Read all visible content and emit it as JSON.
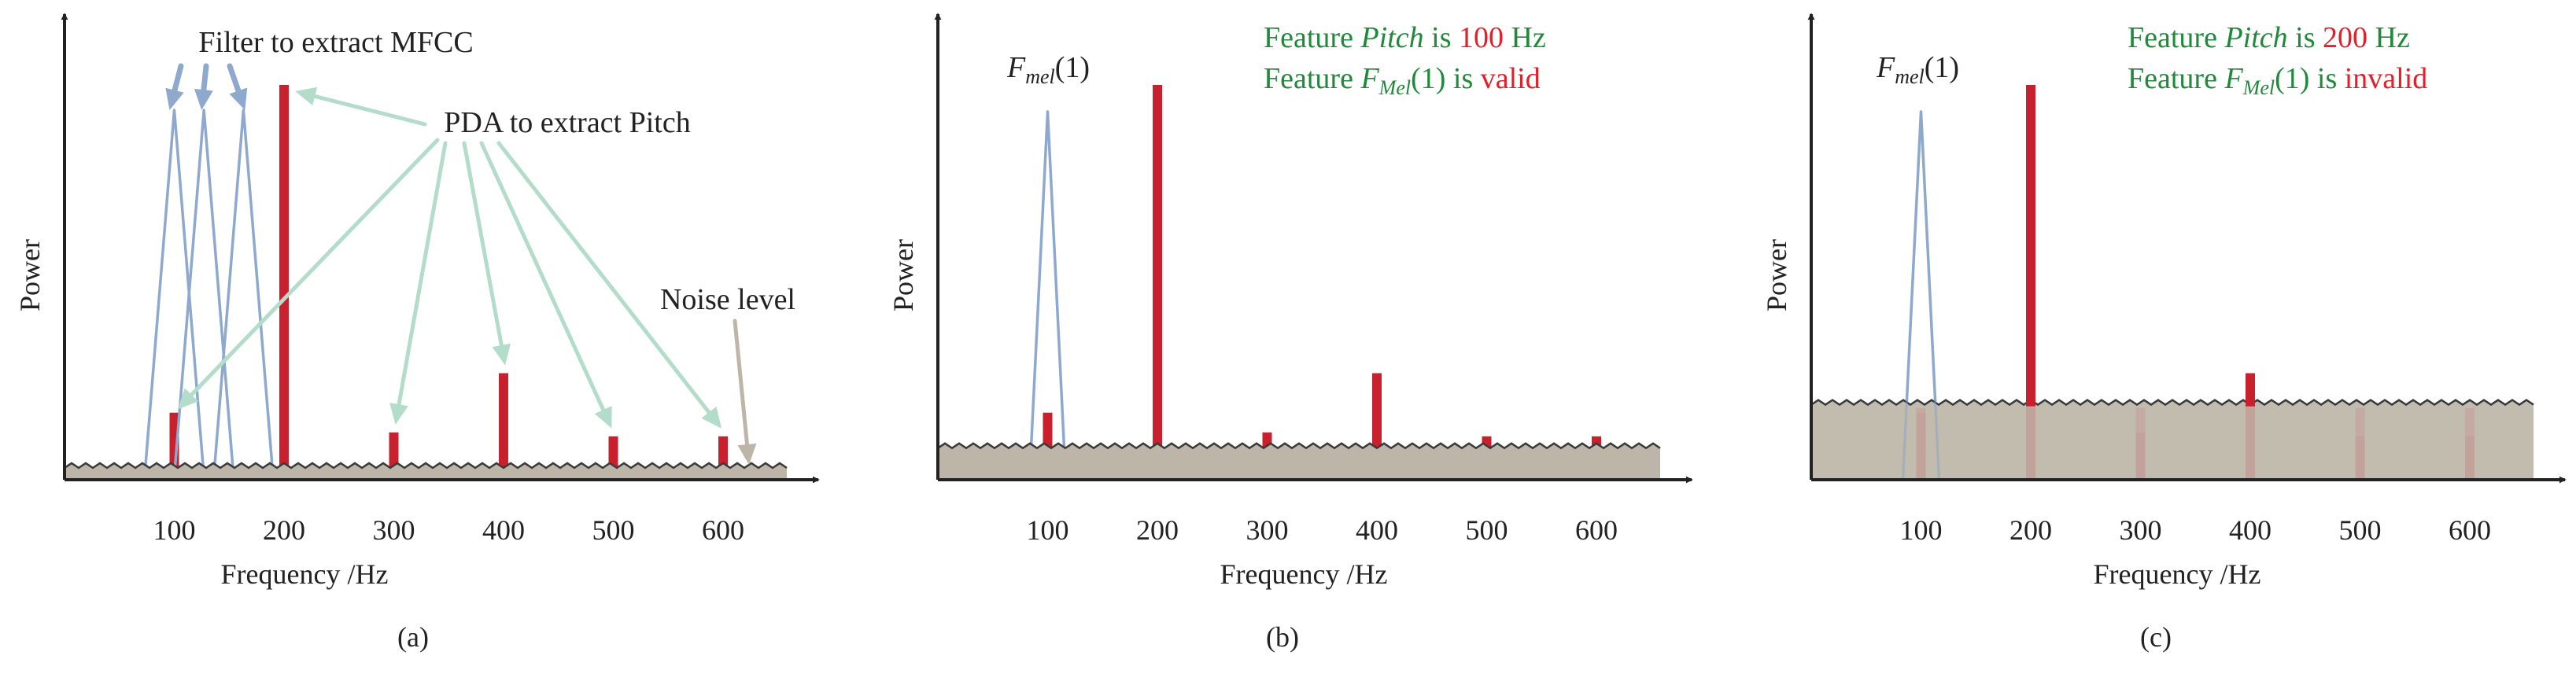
{
  "colors": {
    "axis": "#222222",
    "harmonic_bar": "#c8202c",
    "filter": "#8ea9cd",
    "pda_arrow": "#b3ddca",
    "noise_fill": "#bdb6a8",
    "noise_edge": "#3a3a3a",
    "noise_arrow": "#bdb6a8",
    "feature_text": "#1f8a3a",
    "value_text": "#e0202a"
  },
  "shared": {
    "xlabel": "Frequency /Hz",
    "ylabel": "Power",
    "tick_values": [
      100,
      200,
      300,
      400,
      500,
      600
    ],
    "tick_labels": [
      "100",
      "200",
      "300",
      "400",
      "500",
      "600"
    ]
  },
  "panel_a": {
    "caption": "(a)",
    "label_filter": "Filter to extract MFCC",
    "label_pda": "PDA to extract Pitch",
    "label_noise": "Noise level"
  },
  "panel_b": {
    "caption": "(b)",
    "fmel_label": {
      "base": "F",
      "sub": "mel",
      "suffix": "(1)"
    },
    "feature_pitch": {
      "prefix": "Feature ",
      "name": "Pitch",
      "is": " is ",
      "value": "100",
      "unit": " Hz"
    },
    "feature_fmel": {
      "prefix": "Feature ",
      "base": "F",
      "sub": "Mel",
      "suffix": "(1)  is ",
      "value": "valid"
    }
  },
  "panel_c": {
    "caption": "(c)",
    "fmel_label": {
      "base": "F",
      "sub": "mel",
      "suffix": "(1)"
    },
    "feature_pitch": {
      "prefix": "Feature ",
      "name": "Pitch",
      "is": " is ",
      "value": "200",
      "unit": " Hz"
    },
    "feature_fmel": {
      "prefix": "Feature ",
      "base": "F",
      "sub": "Mel",
      "suffix": "(1)  is ",
      "value": "invalid"
    }
  },
  "chart_data": [
    {
      "type": "bar",
      "panel": "a",
      "x": [
        100,
        200,
        300,
        400,
        500,
        600
      ],
      "values": [
        0.17,
        1.0,
        0.12,
        0.27,
        0.11,
        0.11
      ],
      "noise_level": 0.03,
      "mel_filters": [
        100,
        127,
        163
      ],
      "xlabel": "Frequency /Hz",
      "ylabel": "Power"
    },
    {
      "type": "bar",
      "panel": "b",
      "x": [
        100,
        200,
        300,
        400,
        500,
        600
      ],
      "values": [
        0.17,
        1.0,
        0.12,
        0.27,
        0.11,
        0.11
      ],
      "noise_level": 0.08,
      "mel_filters": [
        100
      ],
      "xlabel": "Frequency /Hz",
      "ylabel": "Power"
    },
    {
      "type": "bar",
      "panel": "c",
      "x": [
        100,
        200,
        300,
        400,
        500,
        600
      ],
      "values": [
        0.17,
        1.0,
        0.12,
        0.27,
        0.11,
        0.11
      ],
      "noise_level": 0.19,
      "mel_filters": [
        100
      ],
      "xlabel": "Frequency /Hz",
      "ylabel": "Power"
    }
  ]
}
